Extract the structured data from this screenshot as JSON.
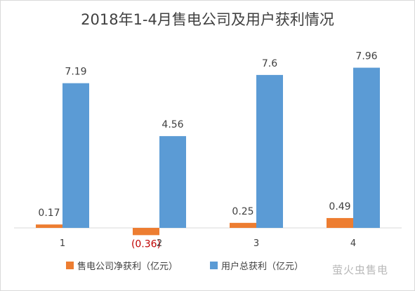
{
  "chart_data": {
    "type": "bar",
    "title": "2018年1-4月售电公司及用户获利情况",
    "categories": [
      "1",
      "2",
      "3",
      "4"
    ],
    "series": [
      {
        "name": "售电公司净获利（亿元）",
        "values": [
          0.17,
          -0.36,
          0.25,
          0.49
        ],
        "labels": [
          "0.17",
          "(0.36)",
          "0.25",
          "0.49"
        ],
        "color": "#ed7d31"
      },
      {
        "name": "用户总获利（亿元）",
        "values": [
          7.19,
          4.56,
          7.6,
          7.96
        ],
        "labels": [
          "7.19",
          "4.56",
          "7.6",
          "7.96"
        ],
        "color": "#5b9bd5"
      }
    ],
    "negative_label_color": "#c00000",
    "grid": false,
    "legend_position": "bottom"
  },
  "watermark": "萤火虫售电"
}
